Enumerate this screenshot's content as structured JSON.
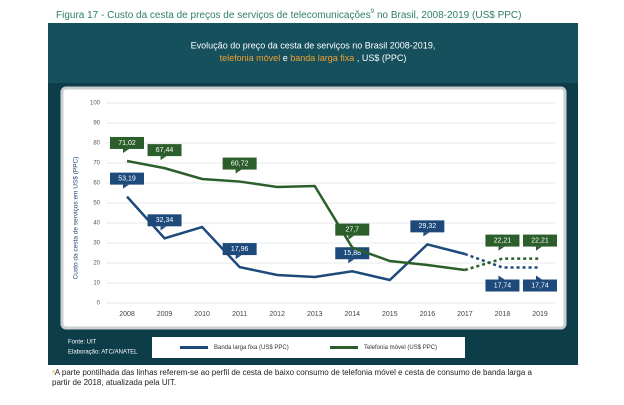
{
  "chart_data": {
    "type": "line",
    "figure_title": "Figura 17 -   Custo da cesta de preços de serviços de telecomunicações",
    "figure_title_tail": "no Brasil, 2008-2019 (US$ PPC)",
    "footnote_ref": "9",
    "subtitle": "Evolução do preço da cesta de serviços no Brasil 2008-2019,",
    "subtitle_parts": [
      "telefonia móvel",
      "e",
      "banda larga fixa",
      ", US$ (PPC)"
    ],
    "ylabel": "Custo da cesta de serviços em US$ (PPC)",
    "categories": [
      "2008",
      "2009",
      "2010",
      "2011",
      "2012",
      "2013",
      "2014",
      "2015",
      "2016",
      "2017",
      "2018",
      "2019"
    ],
    "ylim": [
      0,
      100
    ],
    "yticks": [
      0,
      10,
      20,
      30,
      40,
      50,
      60,
      70,
      80,
      90,
      100
    ],
    "grid": true,
    "dashed_from": 9,
    "series": [
      {
        "name": "Banda larga fixa (US$ PPC)",
        "color": "#1d4a7a",
        "values": [
          53.19,
          32.34,
          38,
          17.96,
          14,
          13,
          15.88,
          11.5,
          29.32,
          24.5,
          17.74,
          17.74
        ],
        "value_labels": [
          "53,19",
          "32,34",
          null,
          "17,96",
          null,
          null,
          "15,88",
          null,
          "29,32",
          null,
          "17,74",
          "17,74"
        ]
      },
      {
        "name": "Telefonia móvel (US$ PPC)",
        "color": "#2b5e2b",
        "values": [
          71.02,
          67.44,
          62,
          60.72,
          58,
          58.5,
          27.7,
          21,
          19,
          16.5,
          22.21,
          22.21
        ],
        "value_labels": [
          "71,02",
          "67,44",
          null,
          "60,72",
          null,
          null,
          "27,7",
          null,
          null,
          null,
          "22,21",
          "22,21"
        ]
      }
    ],
    "source": "Fonte: UIT",
    "credit": "Elaboração: ATC/ANATEL",
    "footnote": "A parte pontilhada das linhas referem-se ao perfil de cesta de baixo consumo de telefonia móvel e cesta de consumo de banda larga a partir de 2018, atualizada pela UIT."
  }
}
